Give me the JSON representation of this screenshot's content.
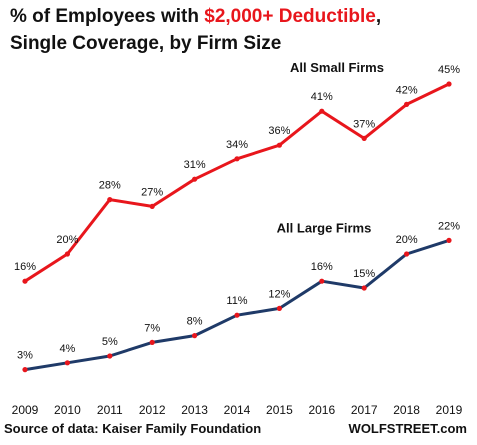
{
  "chart_data": {
    "type": "line",
    "title": {
      "prefix": "% of Employees with ",
      "highlight": "$2,000+ Deductible",
      "suffix": ",",
      "line2": "Single Coverage, by Firm Size"
    },
    "x": [
      "2009",
      "2010",
      "2011",
      "2012",
      "2013",
      "2014",
      "2015",
      "2016",
      "2017",
      "2018",
      "2019"
    ],
    "series": [
      {
        "name": "All Small Firms",
        "color": "#e8161c",
        "values": [
          16,
          20,
          28,
          27,
          31,
          34,
          36,
          41,
          37,
          42,
          45
        ],
        "labels": [
          "16%",
          "20%",
          "28%",
          "27%",
          "31%",
          "34%",
          "36%",
          "41%",
          "37%",
          "42%",
          "45%"
        ]
      },
      {
        "name": "All Large Firms",
        "color": "#1f3a68",
        "values": [
          3,
          4,
          5,
          7,
          8,
          11,
          12,
          16,
          15,
          20,
          22
        ],
        "labels": [
          "3%",
          "4%",
          "5%",
          "7%",
          "8%",
          "11%",
          "12%",
          "16%",
          "15%",
          "20%",
          "22%"
        ]
      }
    ],
    "marker_color": "#e8161c",
    "ylim": [
      0,
      50
    ],
    "grid": false,
    "source": "Source of data: Kaiser Family Foundation",
    "credit": "WOLFSTREET.com"
  }
}
